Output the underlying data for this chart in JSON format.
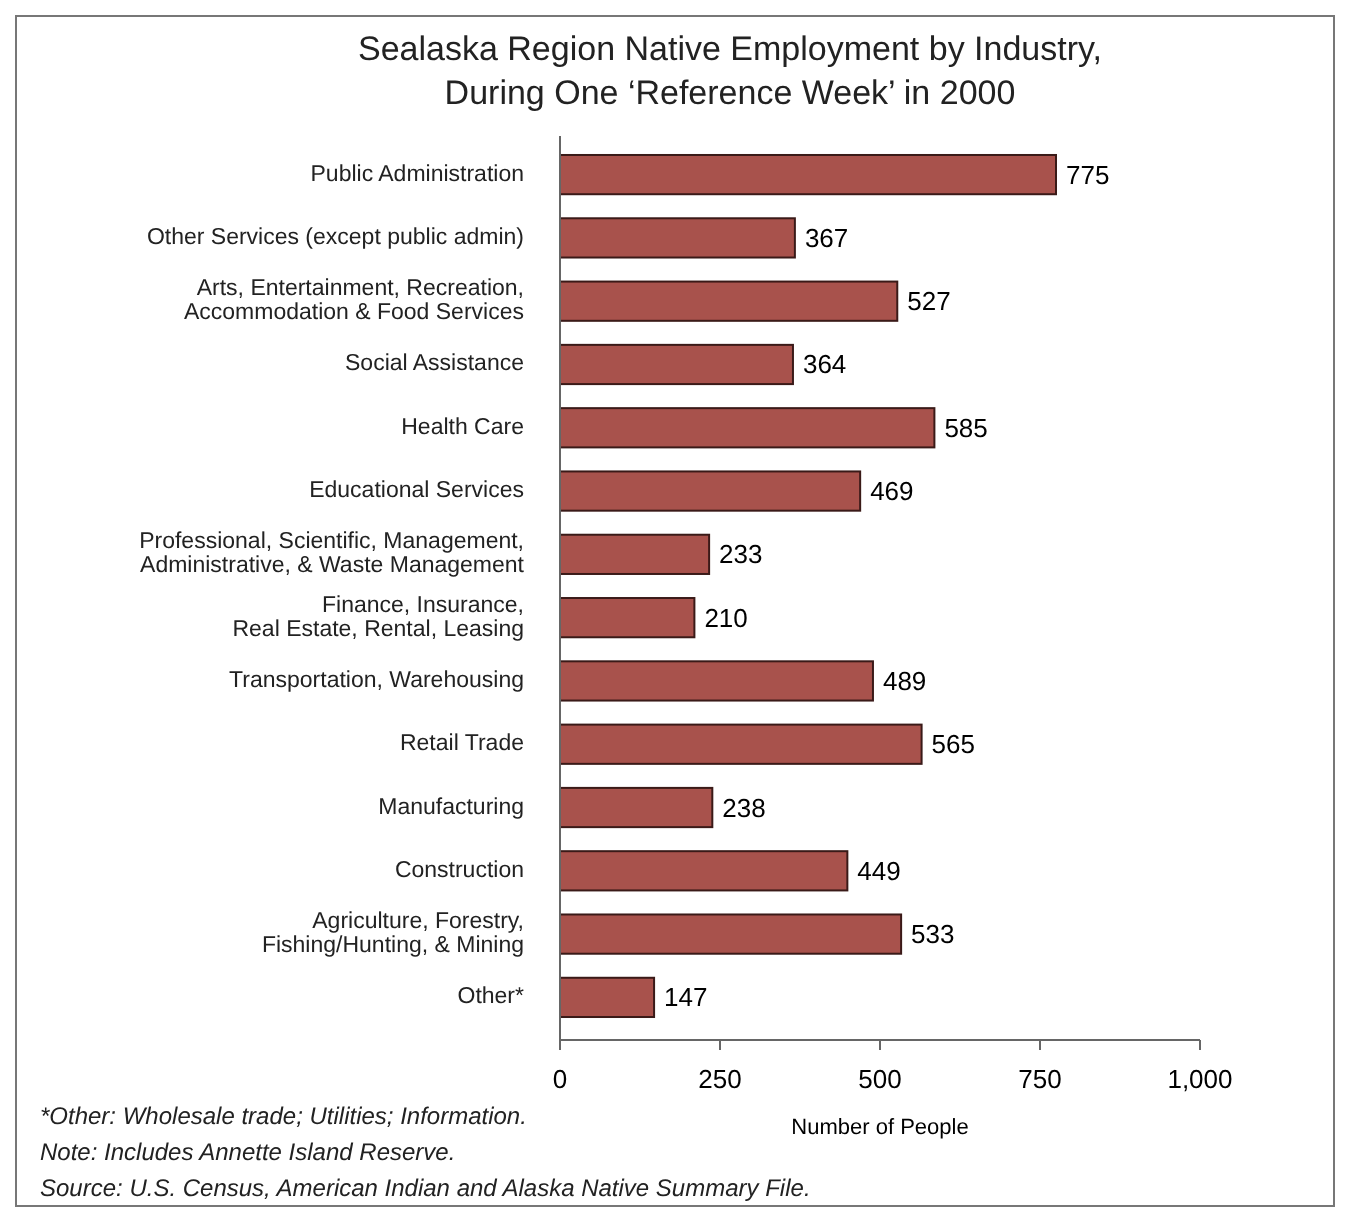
{
  "chart_data": {
    "type": "bar",
    "orientation": "horizontal",
    "title": "Sealaska Region Native Employment by Industry,\nDuring One ‘Reference Week’ in 2000",
    "xlabel": "Number of People",
    "categories": [
      "Public Administration",
      "Other Services (except public admin)",
      "Arts, Entertainment, Recreation,\nAccommodation & Food Services",
      "Social Assistance",
      "Health Care",
      "Educational Services",
      "Professional, Scientific, Management,\nAdministrative, & Waste Management",
      "Finance, Insurance,\nReal Estate, Rental, Leasing",
      "Transportation, Warehousing",
      "Retail Trade",
      "Manufacturing",
      "Construction",
      "Agriculture, Forestry,\nFishing/Hunting, & Mining",
      "Other*"
    ],
    "values": [
      775,
      367,
      527,
      364,
      585,
      469,
      233,
      210,
      489,
      565,
      238,
      449,
      533,
      147
    ],
    "color": "#a8524c",
    "data_labels": true,
    "grid": false,
    "xlim": [
      0,
      1000
    ],
    "xticks": [
      0,
      250,
      500,
      750,
      {
        "value": 1000,
        "label": "1,000"
      }
    ],
    "annotations": [
      "*Other: Wholesale trade; Utilities; Information.",
      "Note: Includes Annette Island Reserve.",
      "Source: U.S. Census, American Indian and Alaska Native Summary File."
    ]
  }
}
